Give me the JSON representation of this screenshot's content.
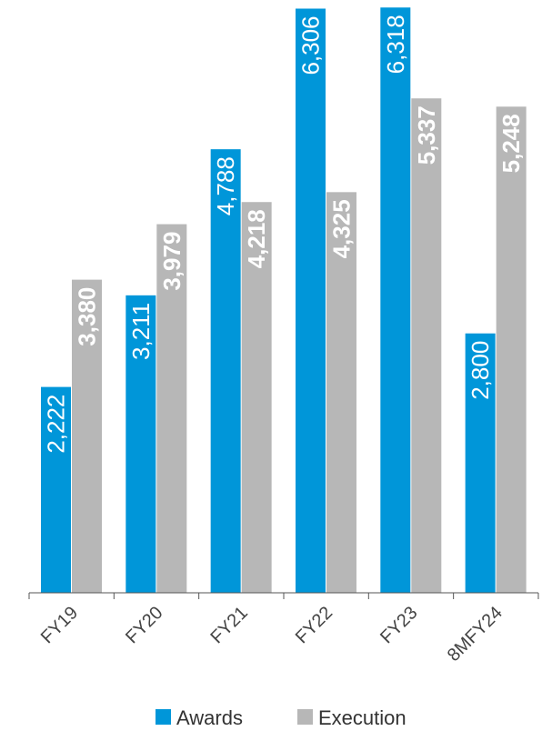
{
  "chart_data": {
    "type": "bar",
    "categories": [
      "FY19",
      "FY20",
      "FY21",
      "FY22",
      "FY23",
      "8MFY24"
    ],
    "series": [
      {
        "name": "Awards",
        "values": [
          2222,
          3211,
          4788,
          6306,
          6318,
          2800
        ],
        "labels": [
          "2,222",
          "3,211",
          "4,788",
          "6,306",
          "6,318",
          "2,800"
        ],
        "color": "#0096d9"
      },
      {
        "name": "Execution",
        "values": [
          3380,
          3979,
          4218,
          4325,
          5337,
          5248
        ],
        "labels": [
          "3,380",
          "3,979",
          "4,218",
          "4,325",
          "5,337",
          "5,248"
        ],
        "color": "#b7b7b7"
      }
    ],
    "ylim": [
      0,
      6350
    ],
    "legend": "bottom",
    "grid": false
  }
}
